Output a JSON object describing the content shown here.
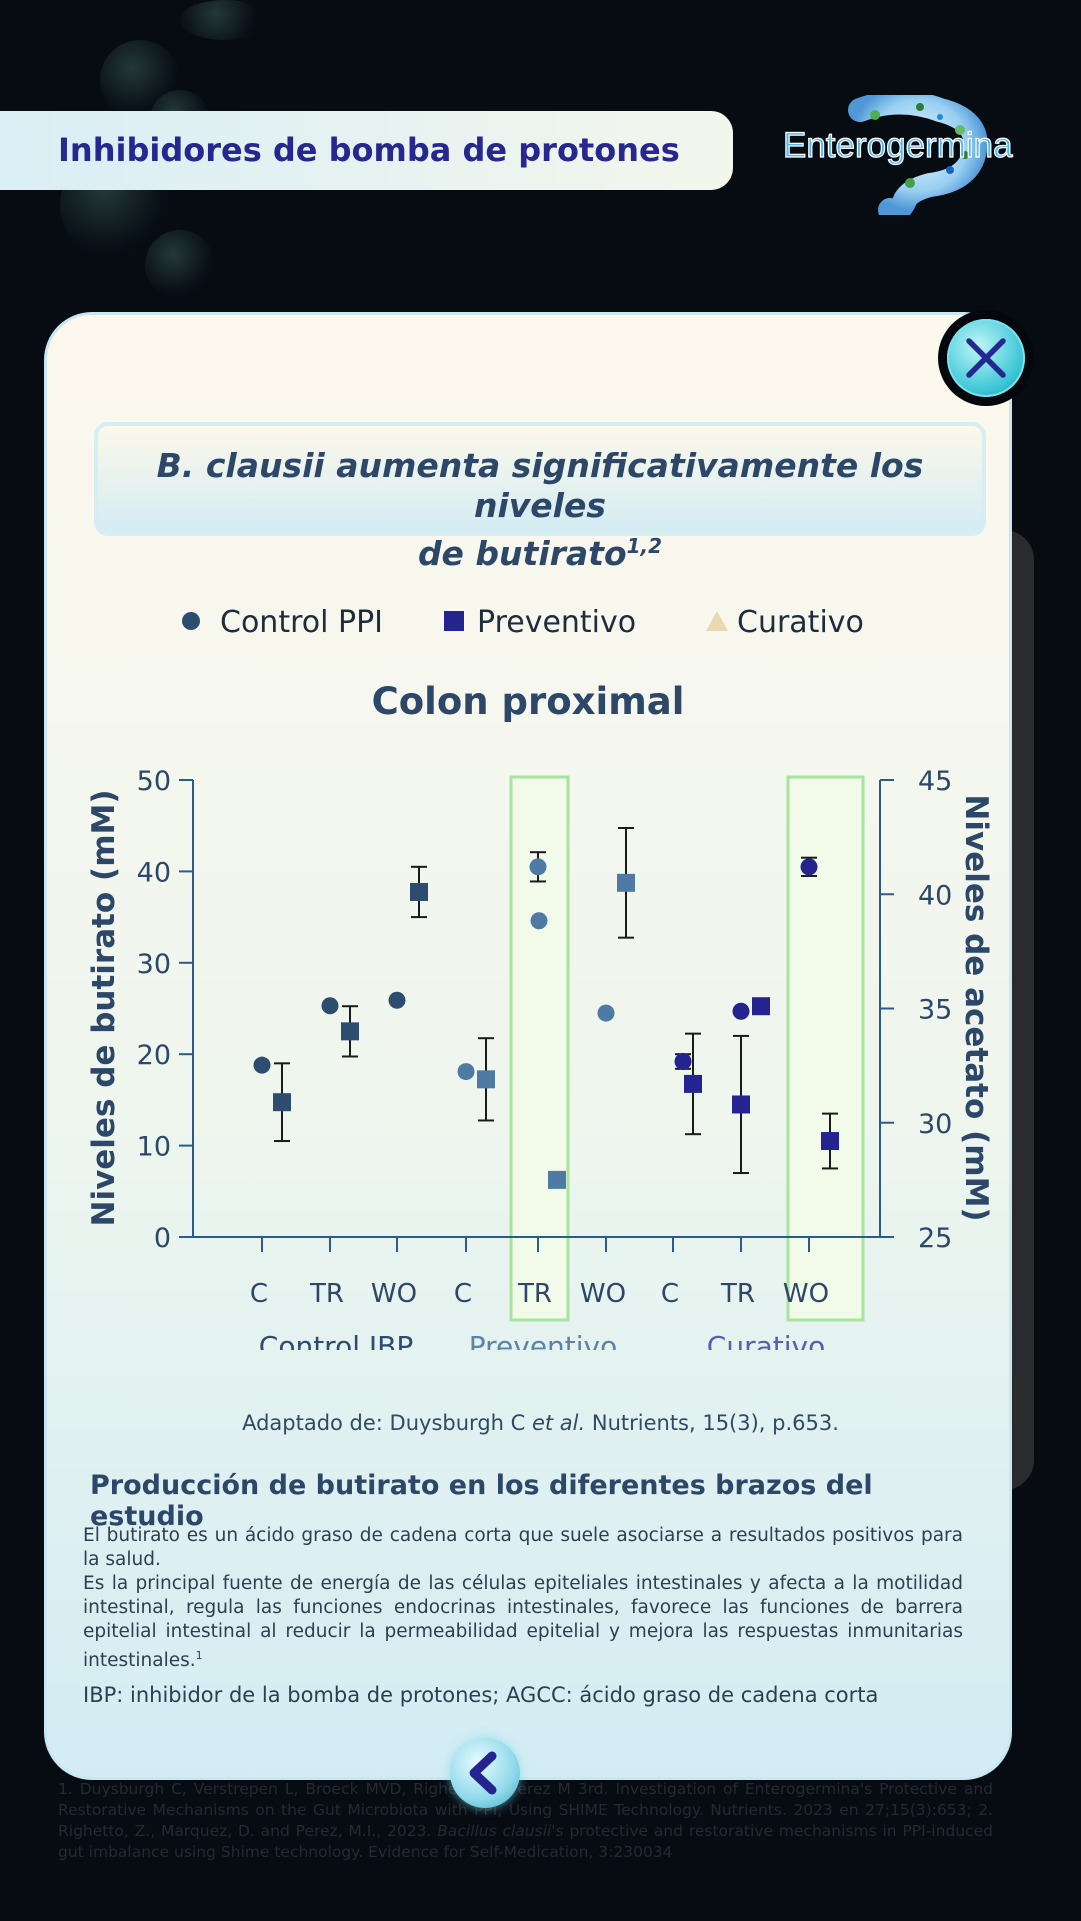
{
  "header": {
    "title": "Inhibidores de bomba de protones"
  },
  "logo": {
    "text": "Enterogermina"
  },
  "card": {
    "subtitle_line1": "B. clausii aumenta significativamente los niveles",
    "subtitle_line2": "de butirato",
    "subtitle_sup": "1,2"
  },
  "legend": [
    {
      "label": "Control PPI",
      "marker": "circle",
      "color": "#2c4d6e"
    },
    {
      "label": "Preventivo",
      "marker": "square",
      "color": "#23248f"
    },
    {
      "label": "Curativo",
      "marker": "triangle",
      "color": "#e8d9b2"
    }
  ],
  "chart_data": {
    "type": "scatter",
    "title": "Colon proximal",
    "ylabel": "Niveles de butirato (mM)",
    "y2label": "Niveles de acetato (mM)",
    "ylim": [
      0,
      50
    ],
    "yticks": [
      0,
      10,
      20,
      30,
      40,
      50
    ],
    "y2lim": [
      25,
      45
    ],
    "y2ticks": [
      25,
      30,
      35,
      40,
      45
    ],
    "categories": [
      "C",
      "TR",
      "WO",
      "C",
      "TR",
      "WO",
      "C",
      "TR",
      "WO"
    ],
    "groups": [
      {
        "label": "Control IBP",
        "color": "#2c4d6e"
      },
      {
        "label": "Preventivo",
        "color": "#5b84aa"
      },
      {
        "label": "Curativo",
        "color": "#5a5cb3"
      }
    ],
    "highlighted_categories": [
      4,
      8
    ],
    "series": [
      {
        "axis": "butirato",
        "marker": "circle",
        "points": [
          {
            "cat": 0,
            "y": 18.8,
            "color": "#2c4d6e"
          },
          {
            "cat": 1,
            "y": 25.3,
            "color": "#2c4d6e"
          },
          {
            "cat": 2,
            "y": 25.9,
            "color": "#2c4d6e"
          },
          {
            "cat": 3,
            "y": 18.1,
            "color": "#4f7aa3"
          },
          {
            "cat": 4,
            "y": 40.5,
            "err": 1.6,
            "color": "#4f7aa3"
          },
          {
            "cat": 4,
            "y": 34.6,
            "color": "#4f7aa3"
          },
          {
            "cat": 5,
            "y": 24.5,
            "color": "#4f7aa3"
          },
          {
            "cat": 6,
            "y": 19.2,
            "err": 0.8,
            "color": "#23248f"
          },
          {
            "cat": 7,
            "y": 24.7,
            "color": "#23248f"
          },
          {
            "cat": 8,
            "y": 40.5,
            "err": 1.0,
            "color": "#23248f"
          }
        ]
      },
      {
        "axis": "acetato",
        "marker": "square",
        "points": [
          {
            "cat": 0,
            "y": 30.9,
            "err": 1.7,
            "color": "#2c4d6e"
          },
          {
            "cat": 1,
            "y": 34.0,
            "err": 1.1,
            "color": "#2c4d6e"
          },
          {
            "cat": 2,
            "y": 40.1,
            "err": 1.1,
            "color": "#2c4d6e"
          },
          {
            "cat": 3,
            "y": 31.9,
            "err": 1.8,
            "color": "#4f7aa3"
          },
          {
            "cat": 4,
            "y": 27.5,
            "color": "#4f7aa3"
          },
          {
            "cat": 5,
            "y": 40.5,
            "err": 2.4,
            "color": "#4f7aa3"
          },
          {
            "cat": 6,
            "y": 31.7,
            "err": 2.2,
            "color": "#23248f"
          },
          {
            "cat": 7,
            "y": 30.8,
            "err": 3.0,
            "color": "#23248f"
          },
          {
            "cat": 7,
            "y": 35.1,
            "color": "#23248f"
          },
          {
            "cat": 8,
            "y": 29.2,
            "err": 1.2,
            "color": "#23248f"
          }
        ]
      }
    ]
  },
  "source": {
    "prefix": "Adaptado de: Duysburgh C ",
    "italic": "et al.",
    "suffix": " Nutrients, 15(3), p.653."
  },
  "section_title": "Producción de butirato en los diferentes brazos del estudio",
  "body": {
    "p1": "El butirato es un ácido graso de cadena corta que suele asociarse a resultados positivos para la salud.",
    "p2": "Es la principal fuente de energía de las células epiteliales intestinales y afecta a la motilidad intestinal, regula las funciones endocrinas intestinales, favorece las funciones de barrera epitelial intestinal al reducir la permeabilidad epitelial y mejora las respuestas inmunitarias intestinales.",
    "p2_sup": "1",
    "abbrev": "IBP: inhibidor de la bomba de protones; AGCC: ácido graso de cadena corta"
  },
  "references": {
    "r1": "1. Duysburgh C, Verstrepen L, Broeck MVD, Righetto Z, Perez M 3rd. Investigation of Enterogermina's Protective and Restorative Mechanisms on the Gut Microbiota with PPI, Using SHIME Technology. Nutrients. 2023 en 27;15(3):653; 2. Righetto, Z., Marquez, D. and Perez, M.I., 2023. ",
    "r2_italic": "Bacillus clausii's",
    "r3": " protective and restorative mechanisms in PPI-induced gut imbalance using Shime technology. Evidence for Self-Medication, 3:230034"
  },
  "colors": {
    "accent": "#27288f",
    "title": "#2c4768",
    "highlight": "#a8e3a0"
  }
}
